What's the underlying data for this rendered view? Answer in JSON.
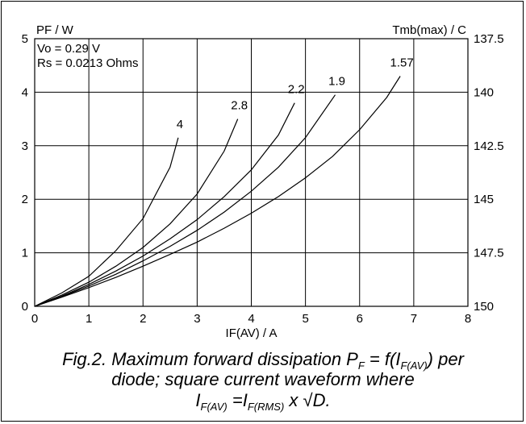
{
  "chart_data": {
    "type": "line",
    "title": "",
    "xlabel": "IF(AV) / A",
    "ylabel": "PF / W",
    "y2label": "Tmb(max) / C",
    "xlim": [
      0,
      8
    ],
    "ylim": [
      0,
      5
    ],
    "x_ticks": [
      "0",
      "1",
      "2",
      "3",
      "4",
      "5",
      "6",
      "7",
      "8"
    ],
    "y_ticks": [
      "0",
      "1",
      "2",
      "3",
      "4",
      "5"
    ],
    "y2_ticks": [
      "150",
      "147.5",
      "145",
      "142.5",
      "140",
      "137.5"
    ],
    "grid": true,
    "annotations": [
      "Vo = 0.29 V",
      "Rs = 0.0213 Ohms"
    ],
    "series": [
      {
        "name": "4",
        "x": [
          0,
          0.5,
          1,
          1.5,
          2,
          2.5,
          2.65
        ],
        "y": [
          0,
          0.25,
          0.56,
          1.04,
          1.64,
          2.6,
          3.15
        ]
      },
      {
        "name": "2.8",
        "x": [
          0,
          0.5,
          1,
          1.5,
          2,
          2.5,
          3,
          3.5,
          3.75
        ],
        "y": [
          0,
          0.21,
          0.45,
          0.75,
          1.1,
          1.54,
          2.1,
          2.9,
          3.5
        ]
      },
      {
        "name": "2.2",
        "x": [
          0,
          0.5,
          1,
          1.5,
          2,
          2.5,
          3,
          3.5,
          4,
          4.5,
          4.8
        ],
        "y": [
          0,
          0.19,
          0.41,
          0.66,
          0.94,
          1.26,
          1.62,
          2.05,
          2.55,
          3.2,
          3.8
        ]
      },
      {
        "name": "1.9",
        "x": [
          0,
          0.5,
          1,
          1.5,
          2,
          2.5,
          3,
          3.5,
          4,
          4.5,
          5,
          5.55
        ],
        "y": [
          0,
          0.18,
          0.38,
          0.6,
          0.85,
          1.12,
          1.42,
          1.76,
          2.15,
          2.6,
          3.15,
          3.95
        ]
      },
      {
        "name": "1.57",
        "x": [
          0,
          0.5,
          1,
          1.5,
          2,
          2.5,
          3,
          3.5,
          4,
          4.5,
          5,
          5.5,
          6,
          6.5,
          6.75
        ],
        "y": [
          0,
          0.17,
          0.35,
          0.54,
          0.75,
          0.97,
          1.2,
          1.46,
          1.74,
          2.05,
          2.4,
          2.8,
          3.3,
          3.9,
          4.3
        ]
      }
    ]
  },
  "caption": {
    "line1_a": "Fig.2.   Maximum forward dissipation P",
    "line1_sub1": "F",
    "line1_b": " = f(I",
    "line1_sub2": "F(AV)",
    "line1_c": ") per",
    "line2": "diode; square current waveform where",
    "line3_a": "I",
    "line3_sub1": "F(AV)",
    "line3_b": " =I",
    "line3_sub2": "F(RMS)",
    "line3_c": " x √D."
  }
}
